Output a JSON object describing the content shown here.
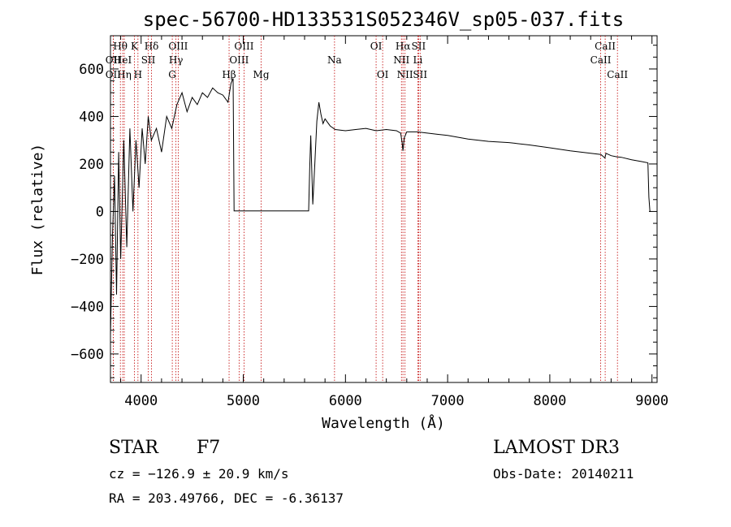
{
  "chart_data": {
    "type": "line",
    "title": "spec-56700-HD133531S052346V_sp05-037.fits",
    "xlabel": "Wavelength (Å)",
    "ylabel": "Flux (relative)",
    "xlim": [
      3700,
      9050
    ],
    "ylim": [
      -720,
      740
    ],
    "xticks": [
      4000,
      5000,
      6000,
      7000,
      8000,
      9000
    ],
    "yticks": [
      -600,
      -400,
      -200,
      0,
      200,
      400,
      600
    ],
    "grid": false,
    "series": [
      {
        "x": [
          3700,
          3720,
          3740,
          3760,
          3780,
          3800,
          3830,
          3860,
          3890,
          3920,
          3950,
          3980,
          4010,
          4040,
          4070,
          4100,
          4150,
          4200,
          4250,
          4300,
          4350,
          4400,
          4450,
          4500,
          4550,
          4600,
          4650,
          4700,
          4750,
          4800,
          4850,
          4880,
          4900,
          4910,
          4920,
          4940,
          5000,
          5100,
          5200,
          5300,
          5400,
          5500,
          5600,
          5640,
          5650,
          5660,
          5680,
          5700,
          5720,
          5740,
          5760,
          5780,
          5800,
          5850,
          5900,
          6000,
          6100,
          6200,
          6300,
          6400,
          6500,
          6540,
          6555,
          6563,
          6575,
          6600,
          6700,
          6800,
          6900,
          7000,
          7200,
          7400,
          7600,
          7800,
          8000,
          8200,
          8400,
          8500,
          8540,
          8550,
          8600,
          8660,
          8700,
          8800,
          8900,
          8960,
          8970,
          8980,
          8990
        ],
        "y": [
          -520,
          -100,
          150,
          -350,
          250,
          -200,
          300,
          -150,
          350,
          0,
          300,
          100,
          350,
          200,
          400,
          300,
          350,
          250,
          400,
          350,
          450,
          500,
          420,
          480,
          450,
          500,
          480,
          520,
          500,
          490,
          460,
          540,
          560,
          2,
          2,
          2,
          2,
          2,
          2,
          2,
          2,
          2,
          2,
          2,
          180,
          320,
          30,
          200,
          380,
          460,
          410,
          370,
          390,
          360,
          345,
          340,
          345,
          350,
          340,
          345,
          340,
          330,
          290,
          255,
          310,
          335,
          335,
          330,
          325,
          320,
          305,
          295,
          290,
          280,
          268,
          255,
          245,
          240,
          225,
          245,
          235,
          230,
          228,
          218,
          210,
          205,
          60,
          0,
          0
        ]
      }
    ],
    "lines": [
      {
        "label": "Hθ",
        "x": 3797,
        "row": 0
      },
      {
        "label": "K",
        "x": 3934,
        "row": 0
      },
      {
        "label": "Hδ",
        "x": 4102,
        "row": 0
      },
      {
        "label": "OII",
        "x": 3727,
        "row": 1
      },
      {
        "label": "HeI",
        "x": 3820,
        "row": 1
      },
      {
        "label": "SII",
        "x": 4070,
        "row": 1
      },
      {
        "label": "OII",
        "x": 3727,
        "row": 2
      },
      {
        "label": "Hη",
        "x": 3835,
        "row": 2
      },
      {
        "label": "H",
        "x": 3969,
        "row": 2
      },
      {
        "label": "OIII",
        "x": 4363,
        "row": 0
      },
      {
        "label": "Hγ",
        "x": 4341,
        "row": 1
      },
      {
        "label": "G",
        "x": 4305,
        "row": 2
      },
      {
        "label": "OIII",
        "x": 5007,
        "row": 0
      },
      {
        "label": "OIII",
        "x": 4959,
        "row": 1
      },
      {
        "label": "Hβ",
        "x": 4861,
        "row": 2
      },
      {
        "label": "Mg",
        "x": 5175,
        "row": 2
      },
      {
        "label": "Na",
        "x": 5893,
        "row": 1
      },
      {
        "label": "OI",
        "x": 6300,
        "row": 0
      },
      {
        "label": "OI",
        "x": 6364,
        "row": 2
      },
      {
        "label": "Hα",
        "x": 6563,
        "row": 0
      },
      {
        "label": "SII",
        "x": 6716,
        "row": 0
      },
      {
        "label": "NII",
        "x": 6548,
        "row": 1
      },
      {
        "label": "Li",
        "x": 6708,
        "row": 1
      },
      {
        "label": "NII",
        "x": 6583,
        "row": 2
      },
      {
        "label": "SII",
        "x": 6731,
        "row": 2
      },
      {
        "label": "CaII",
        "x": 8542,
        "row": 0
      },
      {
        "label": "CaII",
        "x": 8498,
        "row": 1
      },
      {
        "label": "CaII",
        "x": 8662,
        "row": 2
      }
    ]
  },
  "info": {
    "class_label": "STAR",
    "subclass": "F7",
    "survey": "LAMOST DR3",
    "cz": "cz = −126.9 ± 20.9 km/s",
    "obs_date": "Obs-Date: 20140211",
    "coords": "RA = 203.49766, DEC =  -6.36137"
  }
}
